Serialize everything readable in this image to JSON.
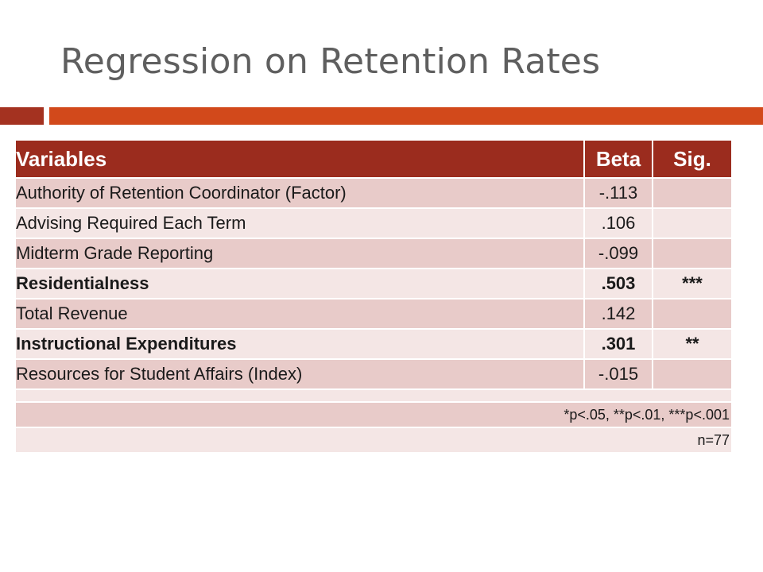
{
  "title": "Regression on Retention Rates",
  "colors": {
    "title_text": "#5f5f5f",
    "accent_dark": "#a43220",
    "accent_orange": "#d2491b",
    "header_bg": "#9b2c1e",
    "row_dark": "#e8cbc9",
    "row_light": "#f4e6e5"
  },
  "table": {
    "headers": {
      "variables": "Variables",
      "beta": "Beta",
      "sig": "Sig."
    },
    "rows": [
      {
        "variable": "Authority of Retention Coordinator (Factor)",
        "beta": "-.113",
        "sig": "",
        "bold": false
      },
      {
        "variable": "Advising Required Each Term",
        "beta": ".106",
        "sig": "",
        "bold": false
      },
      {
        "variable": "Midterm Grade Reporting",
        "beta": "-.099",
        "sig": "",
        "bold": false
      },
      {
        "variable": "Residentialness",
        "beta": ".503",
        "sig": "***",
        "bold": true
      },
      {
        "variable": "Total Revenue",
        "beta": ".142",
        "sig": "",
        "bold": false
      },
      {
        "variable": "Instructional Expenditures",
        "beta": ".301",
        "sig": "**",
        "bold": true
      },
      {
        "variable": "Resources for Student Affairs (Index)",
        "beta": "-.015",
        "sig": "",
        "bold": false
      }
    ],
    "significance_note": "*p<.05, **p<.01, ***p<.001",
    "sample_size": "n=77"
  }
}
